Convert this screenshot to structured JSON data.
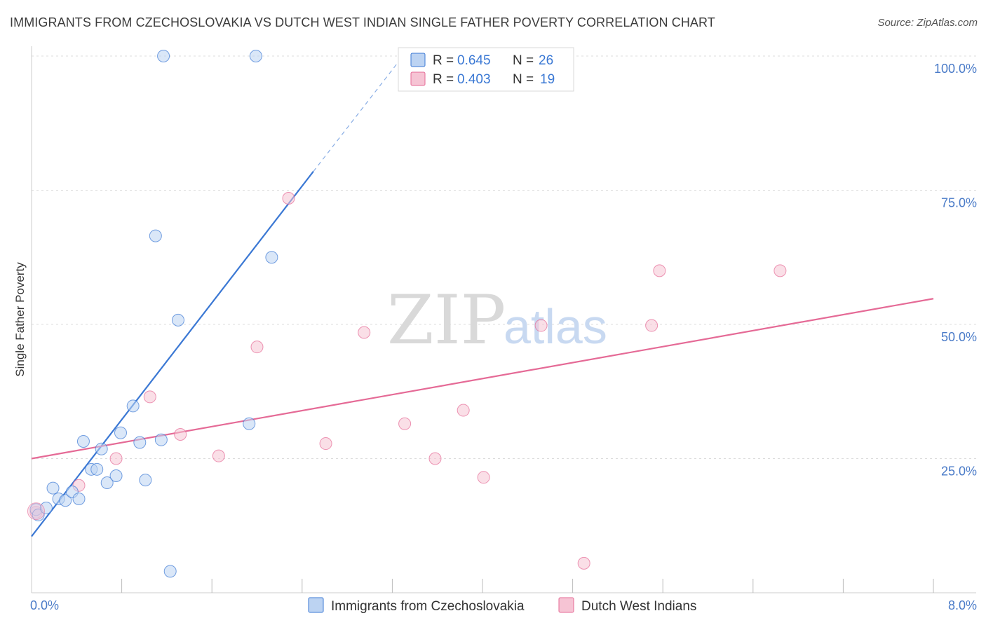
{
  "header": {
    "title": "IMMIGRANTS FROM CZECHOSLOVAKIA VS DUTCH WEST INDIAN SINGLE FATHER POVERTY CORRELATION CHART",
    "source": "Source: ZipAtlas.com"
  },
  "watermark": {
    "zip": "ZIP",
    "atlas": "atlas"
  },
  "colors": {
    "blue": "#3b78d4",
    "blue_fill": "#bcd3f2",
    "pink": "#e56a96",
    "pink_fill": "#f6c4d4",
    "tick": "#4a7bc8",
    "grid": "#dcdcdc"
  },
  "legend": {
    "r_label": "R =",
    "n_label": "N =",
    "entries": [
      {
        "r": "0.645",
        "n": "26"
      },
      {
        "r": "0.403",
        "n": "19"
      }
    ]
  },
  "chart_data": {
    "type": "scatter",
    "title": "IMMIGRANTS FROM CZECHOSLOVAKIA VS DUTCH WEST INDIAN SINGLE FATHER POVERTY CORRELATION CHART",
    "xlabel": "",
    "ylabel": "Single Father Poverty",
    "xlim": [
      0,
      8
    ],
    "ylim": [
      0,
      100
    ],
    "x_tick_labels": [
      {
        "value": 0,
        "label": "0.0%"
      },
      {
        "value": 8,
        "label": "8.0%"
      }
    ],
    "y_tick_labels": [
      {
        "value": 25,
        "label": "25.0%"
      },
      {
        "value": 50,
        "label": "50.0%"
      },
      {
        "value": 75,
        "label": "75.0%"
      },
      {
        "value": 100,
        "label": "100.0%"
      }
    ],
    "x_minor_ticks": [
      0.8,
      1.6,
      2.4,
      3.2,
      4.0,
      4.8,
      5.6,
      6.4,
      7.2,
      8.0
    ],
    "grid": true,
    "legend_position": "top-center",
    "series": [
      {
        "name": "Immigrants from Czechoslovakia",
        "color": "#3b78d4",
        "points": [
          {
            "x": 0.04,
            "y": 15.5
          },
          {
            "x": 0.06,
            "y": 14.5
          },
          {
            "x": 0.13,
            "y": 15.8
          },
          {
            "x": 0.19,
            "y": 19.5
          },
          {
            "x": 0.24,
            "y": 17.5
          },
          {
            "x": 0.3,
            "y": 17.2
          },
          {
            "x": 0.36,
            "y": 18.8
          },
          {
            "x": 0.42,
            "y": 17.5
          },
          {
            "x": 0.46,
            "y": 28.2
          },
          {
            "x": 0.53,
            "y": 23.0
          },
          {
            "x": 0.58,
            "y": 23.0
          },
          {
            "x": 0.62,
            "y": 26.8
          },
          {
            "x": 0.67,
            "y": 20.5
          },
          {
            "x": 0.75,
            "y": 21.8
          },
          {
            "x": 0.79,
            "y": 29.8
          },
          {
            "x": 0.9,
            "y": 34.8
          },
          {
            "x": 0.96,
            "y": 28.0
          },
          {
            "x": 1.01,
            "y": 21.0
          },
          {
            "x": 1.1,
            "y": 66.5
          },
          {
            "x": 1.15,
            "y": 28.5
          },
          {
            "x": 1.17,
            "y": 100.0
          },
          {
            "x": 1.23,
            "y": 4.0
          },
          {
            "x": 1.3,
            "y": 50.8
          },
          {
            "x": 1.93,
            "y": 31.5
          },
          {
            "x": 1.99,
            "y": 100.0
          },
          {
            "x": 2.13,
            "y": 62.5
          }
        ],
        "trend": {
          "x0": 0.0,
          "y0": 10.5,
          "x1": 2.5,
          "y1": 78.5,
          "dash_to_x": 3.35,
          "dash_to_y": 101.5
        }
      },
      {
        "name": "Dutch West Indians",
        "color": "#e56a96",
        "points": [
          {
            "x": 0.04,
            "y": 15.0
          },
          {
            "x": 0.42,
            "y": 20.0
          },
          {
            "x": 0.75,
            "y": 25.0
          },
          {
            "x": 1.05,
            "y": 36.5
          },
          {
            "x": 1.32,
            "y": 29.5
          },
          {
            "x": 1.66,
            "y": 25.5
          },
          {
            "x": 2.0,
            "y": 45.8
          },
          {
            "x": 2.28,
            "y": 73.5
          },
          {
            "x": 2.61,
            "y": 27.8
          },
          {
            "x": 2.95,
            "y": 48.5
          },
          {
            "x": 3.31,
            "y": 31.5
          },
          {
            "x": 3.58,
            "y": 25.0
          },
          {
            "x": 3.83,
            "y": 34.0
          },
          {
            "x": 4.01,
            "y": 21.5
          },
          {
            "x": 4.52,
            "y": 49.8
          },
          {
            "x": 4.9,
            "y": 5.5
          },
          {
            "x": 5.5,
            "y": 49.8
          },
          {
            "x": 5.57,
            "y": 60.0
          },
          {
            "x": 6.64,
            "y": 60.0
          }
        ],
        "trend": {
          "x0": 0.0,
          "y0": 25.0,
          "x1": 8.0,
          "y1": 54.8
        }
      }
    ]
  }
}
